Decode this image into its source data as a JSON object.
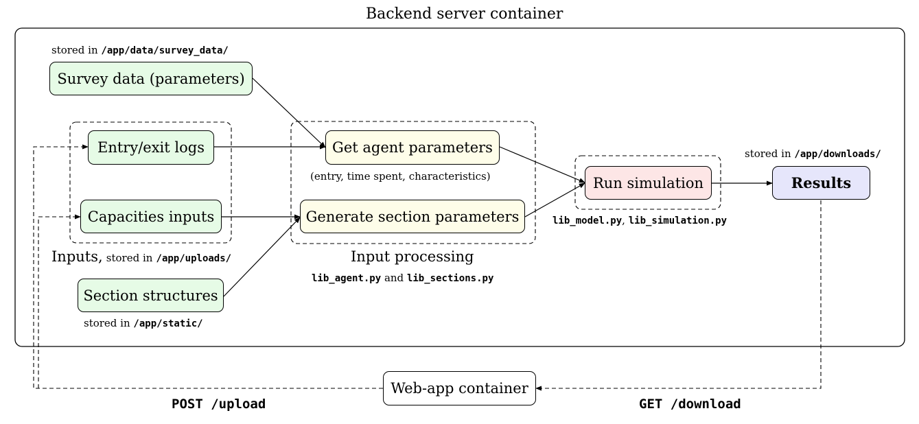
{
  "title": "Backend server container",
  "nodes": {
    "survey": "Survey data (parameters)",
    "entry": "Entry/exit logs",
    "capacities": "Capacities inputs",
    "sections": "Section structures",
    "agent": "Get agent parameters",
    "generate": "Generate section parameters",
    "simulation": "Run simulation",
    "results": "Results",
    "webapp": "Web-app container"
  },
  "notes": {
    "survey_stored_prefix": "stored in",
    "survey_stored_path": "/app/data/survey_data/",
    "downloads_stored_prefix": "stored in",
    "downloads_stored_path": "/app/downloads/",
    "agent_detail": "(entry, time spent, characteristics)",
    "inputs_label": "Inputs,",
    "inputs_stored_prefix": "stored in",
    "inputs_stored_path": "/app/uploads/",
    "processing_label": "Input processing",
    "processing_file1": "lib_agent.py",
    "processing_and": "and",
    "processing_file2": "lib_sections.py",
    "sim_file1": "lib_model.py",
    "sim_sep": ",",
    "sim_file2": "lib_simulation.py",
    "static_stored_prefix": "stored in",
    "static_stored_path": "/app/static/"
  },
  "routes": {
    "upload": "POST /upload",
    "download": "GET /download"
  }
}
